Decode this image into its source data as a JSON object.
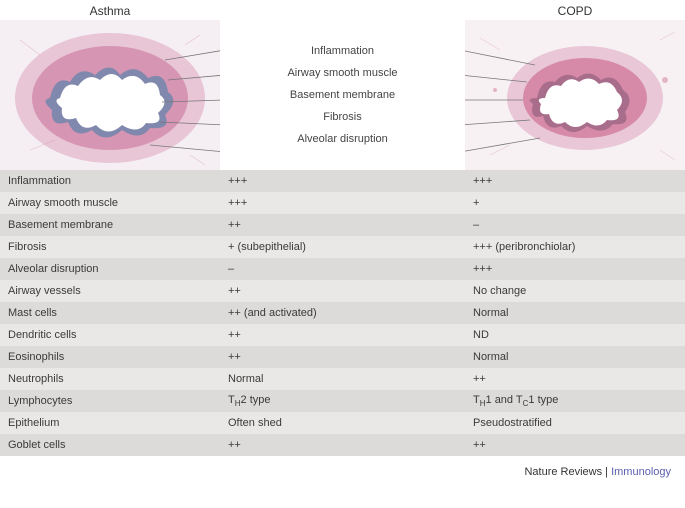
{
  "header": {
    "asthma_title": "Asthma",
    "copd_title": "COPD"
  },
  "center_labels": [
    "Inflammation",
    "Airway smooth muscle",
    "Basement membrane",
    "Fibrosis",
    "Alveolar disruption"
  ],
  "table": {
    "rows": [
      {
        "label": "Inflammation",
        "asthma": "+++",
        "copd": "+++"
      },
      {
        "label": "Airway smooth muscle",
        "asthma": "+++",
        "copd": "+"
      },
      {
        "label": "Basement membrane",
        "asthma": "++",
        "copd": "–"
      },
      {
        "label": "Fibrosis",
        "asthma": "+ (subepithelial)",
        "copd": "+++ (peribronchiolar)"
      },
      {
        "label": "Alveolar disruption",
        "asthma": "–",
        "copd": "+++"
      },
      {
        "label": "Airway vessels",
        "asthma": "++",
        "copd": "No change"
      },
      {
        "label": "Mast cells",
        "asthma": "++ (and activated)",
        "copd": "Normal"
      },
      {
        "label": "Dendritic cells",
        "asthma": "++",
        "copd": "ND"
      },
      {
        "label": "Eosinophils",
        "asthma": "++",
        "copd": "Normal"
      },
      {
        "label": "Neutrophils",
        "asthma": "Normal",
        "copd": "++"
      },
      {
        "label": "Lymphocytes",
        "asthma": "T_H2 type",
        "copd": "T_H1 and T_C1 type"
      },
      {
        "label": "Epithelium",
        "asthma": "Often shed",
        "copd": "Pseudostratified"
      },
      {
        "label": "Goblet cells",
        "asthma": "++",
        "copd": "++"
      }
    ],
    "colors": {
      "row_odd": "#dcdbd9",
      "row_even": "#e9e8e6",
      "text": "#3a3a3a",
      "fontsize": 11
    }
  },
  "histology": {
    "asthma_colors": {
      "stroma": "#d795b4",
      "muscle": "#3a7da8",
      "lumen": "#ffffff",
      "bg": "#f5eef2"
    },
    "copd_colors": {
      "stroma": "#d68aa8",
      "muscle": "#7a4f6c",
      "lumen": "#ffffff",
      "bg": "#f7f1f4"
    },
    "leader_line_color": "#777777"
  },
  "credit": {
    "prefix": "Nature Reviews | ",
    "journal": "Immunology",
    "journal_color": "#5a5fb0",
    "fontsize": 11
  }
}
